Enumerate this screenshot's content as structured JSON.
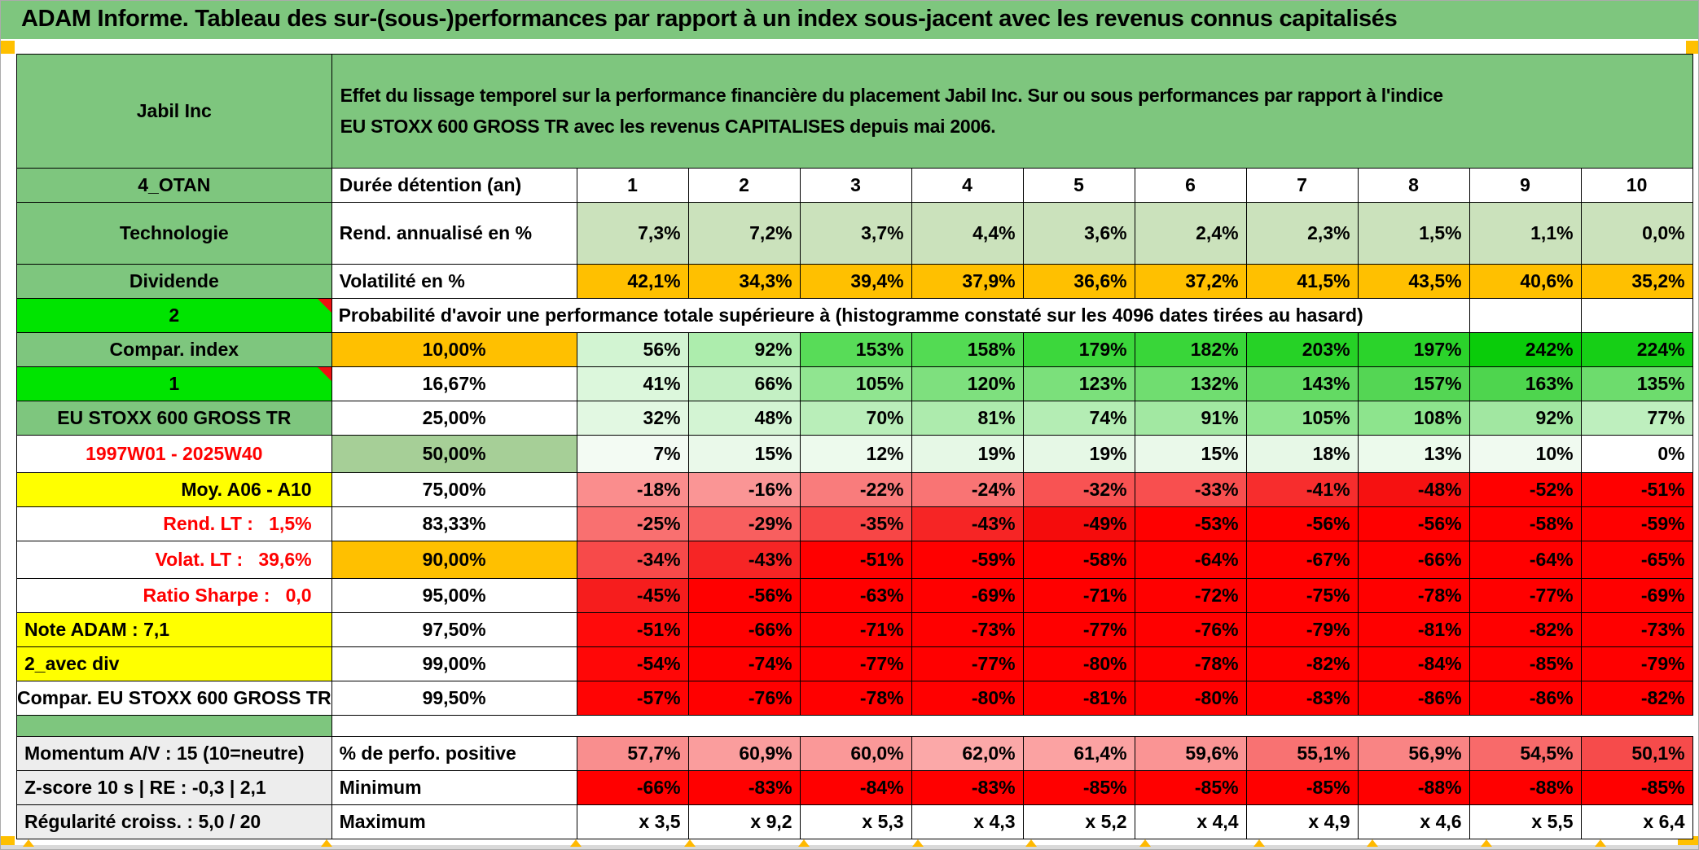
{
  "title": "ADAM Informe. Tableau des sur-(sous-)performances par rapport à un index sous-jacent avec les revenus connus capitalisés",
  "header": {
    "security": "Jabil Inc",
    "description": "Effet du lissage temporel sur la performance financière du placement Jabil Inc. Sur ou sous performances par rapport à l'indice\nEU STOXX 600 GROSS TR avec les revenus CAPITALISES depuis mai 2006."
  },
  "colors": {
    "band_green": "#7EC67E",
    "bright_green": "#00E400",
    "sage_green": "#A6CF97",
    "annualized_row_green": "#CBE2BC",
    "orange": "#FFC000",
    "yellow": "#FFFF00",
    "label_gray": "#EDEDED",
    "alert_red": "#FF0000",
    "marker_orange": "#FFB900"
  },
  "table": {
    "rows": [
      {
        "name": "row-duration-header",
        "a": {
          "t": "4_OTAN",
          "cls": "bg-green"
        },
        "b": {
          "t": "Durée détention (an)",
          "cls": "al lb"
        },
        "cellCls": "hdrnum",
        "cellBg": "#FFFFFF",
        "cells": [
          {
            "t": "1"
          },
          {
            "t": "2"
          },
          {
            "t": "3"
          },
          {
            "t": "4"
          },
          {
            "t": "5"
          },
          {
            "t": "6"
          },
          {
            "t": "7"
          },
          {
            "t": "8"
          },
          {
            "t": "9"
          },
          {
            "t": "10"
          }
        ]
      },
      {
        "name": "row-annualized-return",
        "a": {
          "t": "Technologie",
          "cls": "bg-green"
        },
        "b": {
          "t": "Rend. annualisé en %",
          "cls": "al lb"
        },
        "cellCls": "hv",
        "cellBg": "#CBE2BC",
        "cells": [
          {
            "t": "7,3%"
          },
          {
            "t": "7,2%"
          },
          {
            "t": "3,7%"
          },
          {
            "t": "4,4%"
          },
          {
            "t": "3,6%"
          },
          {
            "t": "2,4%"
          },
          {
            "t": "2,3%"
          },
          {
            "t": "1,5%"
          },
          {
            "t": "1,1%"
          },
          {
            "t": "0,0%"
          }
        ]
      },
      {
        "name": "row-volatility",
        "a": {
          "t": "Dividende",
          "cls": "bg-green"
        },
        "b": {
          "t": "Volatilité en %",
          "cls": "al lb"
        },
        "cellBg": "#FFC000",
        "cells": [
          {
            "t": "42,1%"
          },
          {
            "t": "34,3%"
          },
          {
            "t": "39,4%"
          },
          {
            "t": "37,9%"
          },
          {
            "t": "36,6%"
          },
          {
            "t": "37,2%"
          },
          {
            "t": "41,5%"
          },
          {
            "t": "43,5%"
          },
          {
            "t": "40,6%"
          },
          {
            "t": "35,2%"
          }
        ]
      },
      {
        "name": "row-probability-note",
        "a": {
          "t": "2",
          "cls": "bg-bright big-num corner"
        },
        "merged": {
          "t": "Probabilité d'avoir une performance totale supérieure à (histogramme constaté sur les 4096 dates tirées au hasard)",
          "span": 9
        },
        "cellBg": "#FFFFFF",
        "cells": [
          {
            "t": ""
          },
          {
            "t": ""
          }
        ]
      },
      {
        "name": "row-p10",
        "a": {
          "t": "Compar. index",
          "cls": "bg-green"
        },
        "b": {
          "t": "10,00%",
          "cls": "bg-orange"
        },
        "cellCls": "hv",
        "cells": [
          {
            "t": "56%",
            "bg": "#D2F4D2"
          },
          {
            "t": "92%",
            "bg": "#ADEDAD"
          },
          {
            "t": "153%",
            "bg": "#58DC58"
          },
          {
            "t": "158%",
            "bg": "#53DB53"
          },
          {
            "t": "179%",
            "bg": "#3CD73C"
          },
          {
            "t": "182%",
            "bg": "#39D639"
          },
          {
            "t": "203%",
            "bg": "#26D226"
          },
          {
            "t": "197%",
            "bg": "#2BD32B"
          },
          {
            "t": "242%",
            "bg": "#0ACC0A"
          },
          {
            "t": "224%",
            "bg": "#16CF16"
          }
        ]
      },
      {
        "name": "row-p16",
        "a": {
          "t": "1",
          "cls": "bg-bright big-num corner"
        },
        "b": {
          "t": "16,67%"
        },
        "cells": [
          {
            "t": "41%",
            "bg": "#DCF7DC"
          },
          {
            "t": "66%",
            "bg": "#C4F0C4"
          },
          {
            "t": "105%",
            "bg": "#90E590"
          },
          {
            "t": "120%",
            "bg": "#7EE07E"
          },
          {
            "t": "123%",
            "bg": "#7BE07B"
          },
          {
            "t": "132%",
            "bg": "#70DD70"
          },
          {
            "t": "143%",
            "bg": "#63DA63"
          },
          {
            "t": "157%",
            "bg": "#54D654"
          },
          {
            "t": "163%",
            "bg": "#4ED54E"
          },
          {
            "t": "135%",
            "bg": "#6DDC6D"
          }
        ]
      },
      {
        "name": "row-p25",
        "a": {
          "t": "EU STOXX 600 GROSS TR",
          "cls": "bg-green small"
        },
        "b": {
          "t": "25,00%"
        },
        "cells": [
          {
            "t": "32%",
            "bg": "#E2F8E2"
          },
          {
            "t": "48%",
            "bg": "#D3F4D3"
          },
          {
            "t": "70%",
            "bg": "#B9EEB9"
          },
          {
            "t": "81%",
            "bg": "#ADEBAD"
          },
          {
            "t": "74%",
            "bg": "#B4EDB4"
          },
          {
            "t": "91%",
            "bg": "#A2E8A2"
          },
          {
            "t": "105%",
            "bg": "#90E590"
          },
          {
            "t": "108%",
            "bg": "#8DE48D"
          },
          {
            "t": "92%",
            "bg": "#A1E7A1"
          },
          {
            "t": "77%",
            "bg": "#BEEFBE"
          }
        ]
      },
      {
        "name": "row-p50-median",
        "a": {
          "t": "1997W01 - 2025W40",
          "cls": "redtext"
        },
        "b": {
          "t": "50,00%",
          "cls": "bg-sage"
        },
        "cells": [
          {
            "t": "7%",
            "bg": "#F3FBF3"
          },
          {
            "t": "15%",
            "bg": "#EAF9EA"
          },
          {
            "t": "12%",
            "bg": "#EDFAED"
          },
          {
            "t": "19%",
            "bg": "#E6F8E6"
          },
          {
            "t": "19%",
            "bg": "#E6F8E6"
          },
          {
            "t": "15%",
            "bg": "#EAF9EA"
          },
          {
            "t": "18%",
            "bg": "#E7F8E7"
          },
          {
            "t": "13%",
            "bg": "#ECFAEC"
          },
          {
            "t": "10%",
            "bg": "#F0FAF0"
          },
          {
            "t": "0%",
            "bg": "#FFFFFF"
          }
        ]
      },
      {
        "name": "row-p75",
        "a": {
          "t": "Moy. A06 - A10",
          "cls": "bg-yellow ar big-num"
        },
        "b": {
          "t": "75,00%"
        },
        "cells": [
          {
            "t": "-18%",
            "bg": "#FA8D8D"
          },
          {
            "t": "-16%",
            "bg": "#FA9595"
          },
          {
            "t": "-22%",
            "bg": "#F97C7C"
          },
          {
            "t": "-24%",
            "bg": "#F97474"
          },
          {
            "t": "-32%",
            "bg": "#F85353"
          },
          {
            "t": "-33%",
            "bg": "#F84F4F"
          },
          {
            "t": "-41%",
            "bg": "#F72D2D"
          },
          {
            "t": "-48%",
            "bg": "#F61111"
          },
          {
            "t": "-52%",
            "bg": "#FF0000"
          },
          {
            "t": "-51%",
            "bg": "#FF0000"
          }
        ]
      },
      {
        "name": "row-p83",
        "a": {
          "t": "Rend. LT :   1,5%",
          "cls": "redtext ar big-num"
        },
        "b": {
          "t": "83,33%"
        },
        "cells": [
          {
            "t": "-25%",
            "bg": "#F97070"
          },
          {
            "t": "-29%",
            "bg": "#F85F5F"
          },
          {
            "t": "-35%",
            "bg": "#F74646"
          },
          {
            "t": "-43%",
            "bg": "#F62525"
          },
          {
            "t": "-49%",
            "bg": "#F50C0C"
          },
          {
            "t": "-53%",
            "bg": "#FF0000"
          },
          {
            "t": "-56%",
            "bg": "#FF0000"
          },
          {
            "t": "-56%",
            "bg": "#FF0000"
          },
          {
            "t": "-58%",
            "bg": "#FF0000"
          },
          {
            "t": "-59%",
            "bg": "#FF0000"
          }
        ]
      },
      {
        "name": "row-p90",
        "a": {
          "t": "Volat. LT :   39,6%",
          "cls": "redtext ar big-num"
        },
        "b": {
          "t": "90,00%",
          "cls": "bg-orange"
        },
        "cells": [
          {
            "t": "-34%",
            "bg": "#F74A4A"
          },
          {
            "t": "-43%",
            "bg": "#F62525"
          },
          {
            "t": "-51%",
            "bg": "#FF0000"
          },
          {
            "t": "-59%",
            "bg": "#FF0000"
          },
          {
            "t": "-58%",
            "bg": "#FF0000"
          },
          {
            "t": "-64%",
            "bg": "#FF0000"
          },
          {
            "t": "-67%",
            "bg": "#FF0000"
          },
          {
            "t": "-66%",
            "bg": "#FF0000"
          },
          {
            "t": "-64%",
            "bg": "#FF0000"
          },
          {
            "t": "-65%",
            "bg": "#FF0000"
          }
        ]
      },
      {
        "name": "row-p95",
        "a": {
          "t": "Ratio Sharpe :   0,0",
          "cls": "redtext ar big-num"
        },
        "b": {
          "t": "95,00%"
        },
        "cells": [
          {
            "t": "-45%",
            "bg": "#F61D1D"
          },
          {
            "t": "-56%",
            "bg": "#FF0000"
          },
          {
            "t": "-63%",
            "bg": "#FF0000"
          },
          {
            "t": "-69%",
            "bg": "#FF0000"
          },
          {
            "t": "-71%",
            "bg": "#FF0000"
          },
          {
            "t": "-72%",
            "bg": "#FF0000"
          },
          {
            "t": "-75%",
            "bg": "#FF0000"
          },
          {
            "t": "-78%",
            "bg": "#FF0000"
          },
          {
            "t": "-77%",
            "bg": "#FF0000"
          },
          {
            "t": "-69%",
            "bg": "#FF0000"
          }
        ]
      },
      {
        "name": "row-p975",
        "a": {
          "t": "Note ADAM : 7,1",
          "cls": "bg-yellow al lb"
        },
        "b": {
          "t": "97,50%"
        },
        "cellBg": "#FF0000",
        "cells": [
          {
            "t": "-51%",
            "bg": "#FF0B0B"
          },
          {
            "t": "-66%"
          },
          {
            "t": "-71%"
          },
          {
            "t": "-73%"
          },
          {
            "t": "-77%"
          },
          {
            "t": "-76%"
          },
          {
            "t": "-79%"
          },
          {
            "t": "-81%"
          },
          {
            "t": "-82%"
          },
          {
            "t": "-73%"
          }
        ]
      },
      {
        "name": "row-p99",
        "a": {
          "t": "2_avec div",
          "cls": "bg-yellow al lb"
        },
        "b": {
          "t": "99,00%"
        },
        "cellBg": "#FF0000",
        "cells": [
          {
            "t": "-54%",
            "bg": "#FF0707"
          },
          {
            "t": "-74%"
          },
          {
            "t": "-77%"
          },
          {
            "t": "-77%"
          },
          {
            "t": "-80%"
          },
          {
            "t": "-78%"
          },
          {
            "t": "-82%"
          },
          {
            "t": "-84%"
          },
          {
            "t": "-85%"
          },
          {
            "t": "-79%"
          }
        ]
      },
      {
        "name": "row-p995",
        "a": {
          "t": "Compar. EU STOXX 600 GROSS TR",
          "cls": "med"
        },
        "b": {
          "t": "99,50%"
        },
        "cellBg": "#FF0000",
        "cells": [
          {
            "t": "-57%",
            "bg": "#FF0404"
          },
          {
            "t": "-76%"
          },
          {
            "t": "-78%"
          },
          {
            "t": "-80%"
          },
          {
            "t": "-81%"
          },
          {
            "t": "-80%"
          },
          {
            "t": "-83%"
          },
          {
            "t": "-86%"
          },
          {
            "t": "-86%"
          },
          {
            "t": "-82%"
          }
        ]
      },
      {
        "name": "spacer-row",
        "spacer": true
      },
      {
        "name": "row-positive-perf",
        "a": {
          "t": "Momentum A/V : 15 (10=neutre)",
          "cls": "bg-gray al bl"
        },
        "b": {
          "t": "% de perfo. positive",
          "cls": "al lb"
        },
        "cellCls": "hv",
        "cells": [
          {
            "t": "57,7%",
            "bg": "#F98E8E"
          },
          {
            "t": "60,9%",
            "bg": "#FA9D9D"
          },
          {
            "t": "60,0%",
            "bg": "#FA9898"
          },
          {
            "t": "62,0%",
            "bg": "#FBA8A8"
          },
          {
            "t": "61,4%",
            "bg": "#FBA2A2"
          },
          {
            "t": "59,6%",
            "bg": "#FA9494"
          },
          {
            "t": "55,1%",
            "bg": "#F87272"
          },
          {
            "t": "56,9%",
            "bg": "#F98484"
          },
          {
            "t": "54,5%",
            "bg": "#F86A6A"
          },
          {
            "t": "50,1%",
            "bg": "#F64B4B"
          }
        ]
      },
      {
        "name": "row-minimum",
        "a": {
          "t": "Z-score 10 s | RE : -0,3 | 2,1",
          "cls": "bg-gray al bl"
        },
        "b": {
          "t": "Minimum",
          "cls": "al lb"
        },
        "cellCls": "hv",
        "cellBg": "#FF0000",
        "cells": [
          {
            "t": "-66%"
          },
          {
            "t": "-83%"
          },
          {
            "t": "-84%"
          },
          {
            "t": "-83%"
          },
          {
            "t": "-85%"
          },
          {
            "t": "-85%"
          },
          {
            "t": "-85%"
          },
          {
            "t": "-88%"
          },
          {
            "t": "-88%"
          },
          {
            "t": "-85%"
          }
        ]
      },
      {
        "name": "row-maximum",
        "a": {
          "t": "Régularité croiss. : 5,0 / 20",
          "cls": "bg-gray al bl"
        },
        "b": {
          "t": "Maximum",
          "cls": "al lb"
        },
        "cellCls": "hv",
        "cellBg": "#FFFFFF",
        "cells": [
          {
            "t": "x 3,5"
          },
          {
            "t": "x 9,2"
          },
          {
            "t": "x 5,3"
          },
          {
            "t": "x 4,3"
          },
          {
            "t": "x 5,2"
          },
          {
            "t": "x 4,4"
          },
          {
            "t": "x 4,9"
          },
          {
            "t": "x 4,6"
          },
          {
            "t": "x 5,5"
          },
          {
            "t": "x 6,4"
          }
        ]
      }
    ]
  }
}
